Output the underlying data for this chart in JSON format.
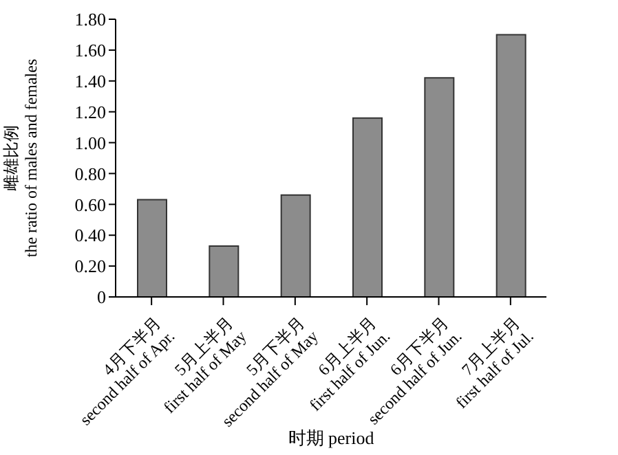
{
  "chart_data": {
    "type": "bar",
    "xlabel": "时期 period",
    "ylabel": "雌雄比例\nthe ratio of males and females",
    "categories": [
      "4月下半月\nsecond half of Apr.",
      "5月上半月\nfirst half of May",
      "5月下半月\nsecond half of May",
      "6月上半月\nfirst half of Jun.",
      "6月下半月\nsecond half of Jun.",
      "7月上半月\nfirst half of Jul."
    ],
    "values": [
      0.63,
      0.33,
      0.66,
      1.16,
      1.42,
      1.7
    ],
    "color": "#8c8c8c",
    "ylim": [
      0,
      1.8
    ],
    "yticks": [
      0,
      {
        "value": 0.2,
        "label": "0.20"
      },
      {
        "value": 0.4,
        "label": "0.40"
      },
      {
        "value": 0.6,
        "label": "0.60"
      },
      {
        "value": 0.8,
        "label": "0.80"
      },
      {
        "value": 1,
        "label": "1.00"
      },
      {
        "value": 1.2,
        "label": "1.20"
      },
      {
        "value": 1.4,
        "label": "1.40"
      },
      {
        "value": 1.6,
        "label": "1.60"
      },
      {
        "value": 1.8,
        "label": "1.80"
      }
    ],
    "grid": false
  }
}
